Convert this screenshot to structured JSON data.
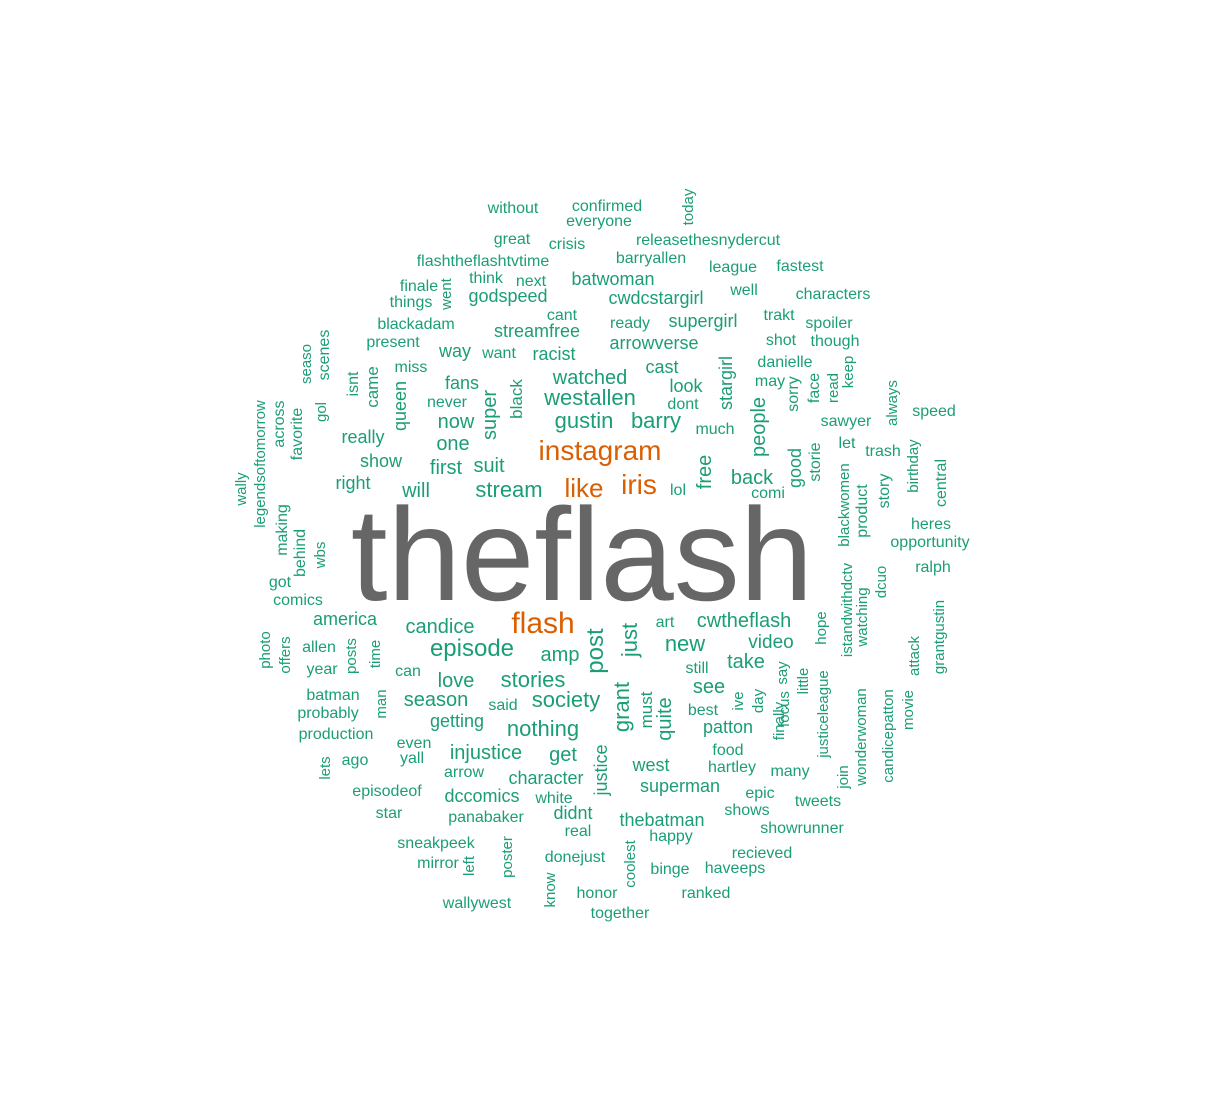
{
  "colors": {
    "tier1": "#666666",
    "tier2": "#d95f02",
    "tier3": "#1b9e77"
  },
  "words": [
    {
      "text": "theflash",
      "tier": 1
    },
    {
      "text": "instagram",
      "tier": 2
    },
    {
      "text": "flash",
      "tier": 2
    },
    {
      "text": "like",
      "tier": 2
    },
    {
      "text": "iris",
      "tier": 2
    },
    {
      "text": "without",
      "tier": 3
    },
    {
      "text": "confirmed",
      "tier": 3
    },
    {
      "text": "everyone",
      "tier": 3
    },
    {
      "text": "today",
      "tier": 3
    },
    {
      "text": "great",
      "tier": 3
    },
    {
      "text": "crisis",
      "tier": 3
    },
    {
      "text": "releasethesnydercut",
      "tier": 3
    },
    {
      "text": "flashtheflashtvtime",
      "tier": 3
    },
    {
      "text": "barryallen",
      "tier": 3
    },
    {
      "text": "league",
      "tier": 3
    },
    {
      "text": "fastest",
      "tier": 3
    },
    {
      "text": "think",
      "tier": 3
    },
    {
      "text": "next",
      "tier": 3
    },
    {
      "text": "batwoman",
      "tier": 3
    },
    {
      "text": "finale",
      "tier": 3
    },
    {
      "text": "went",
      "tier": 3
    },
    {
      "text": "well",
      "tier": 3
    },
    {
      "text": "characters",
      "tier": 3
    },
    {
      "text": "things",
      "tier": 3
    },
    {
      "text": "godspeed",
      "tier": 3
    },
    {
      "text": "cwdcstargirl",
      "tier": 3
    },
    {
      "text": "cant",
      "tier": 3
    },
    {
      "text": "trakt",
      "tier": 3
    },
    {
      "text": "blackadam",
      "tier": 3
    },
    {
      "text": "ready",
      "tier": 3
    },
    {
      "text": "supergirl",
      "tier": 3
    },
    {
      "text": "spoiler",
      "tier": 3
    },
    {
      "text": "streamfree",
      "tier": 3
    },
    {
      "text": "shot",
      "tier": 3
    },
    {
      "text": "though",
      "tier": 3
    },
    {
      "text": "present",
      "tier": 3
    },
    {
      "text": "arrowverse",
      "tier": 3
    },
    {
      "text": "seaso",
      "tier": 3
    },
    {
      "text": "scenes",
      "tier": 3
    },
    {
      "text": "way",
      "tier": 3
    },
    {
      "text": "want",
      "tier": 3
    },
    {
      "text": "racist",
      "tier": 3
    },
    {
      "text": "danielle",
      "tier": 3
    },
    {
      "text": "keep",
      "tier": 3
    },
    {
      "text": "isnt",
      "tier": 3
    },
    {
      "text": "came",
      "tier": 3
    },
    {
      "text": "miss",
      "tier": 3
    },
    {
      "text": "cast",
      "tier": 3
    },
    {
      "text": "stargirl",
      "tier": 3
    },
    {
      "text": "may",
      "tier": 3
    },
    {
      "text": "face",
      "tier": 3
    },
    {
      "text": "read",
      "tier": 3
    },
    {
      "text": "fans",
      "tier": 3
    },
    {
      "text": "watched",
      "tier": 3
    },
    {
      "text": "look",
      "tier": 3
    },
    {
      "text": "sorry",
      "tier": 3
    },
    {
      "text": "always",
      "tier": 3
    },
    {
      "text": "never",
      "tier": 3
    },
    {
      "text": "black",
      "tier": 3
    },
    {
      "text": "westallen",
      "tier": 3
    },
    {
      "text": "dont",
      "tier": 3
    },
    {
      "text": "speed",
      "tier": 3
    },
    {
      "text": "gol",
      "tier": 3
    },
    {
      "text": "queen",
      "tier": 3
    },
    {
      "text": "super",
      "tier": 3
    },
    {
      "text": "people",
      "tier": 3
    },
    {
      "text": "sawyer",
      "tier": 3
    },
    {
      "text": "legendsoftomorrow",
      "tier": 3
    },
    {
      "text": "across",
      "tier": 3
    },
    {
      "text": "favorite",
      "tier": 3
    },
    {
      "text": "now",
      "tier": 3
    },
    {
      "text": "gustin",
      "tier": 3
    },
    {
      "text": "barry",
      "tier": 3
    },
    {
      "text": "much",
      "tier": 3
    },
    {
      "text": "really",
      "tier": 3
    },
    {
      "text": "one",
      "tier": 3
    },
    {
      "text": "let",
      "tier": 3
    },
    {
      "text": "trash",
      "tier": 3
    },
    {
      "text": "birthday",
      "tier": 3
    },
    {
      "text": "show",
      "tier": 3
    },
    {
      "text": "first",
      "tier": 3
    },
    {
      "text": "suit",
      "tier": 3
    },
    {
      "text": "free",
      "tier": 3
    },
    {
      "text": "good",
      "tier": 3
    },
    {
      "text": "storie",
      "tier": 3
    },
    {
      "text": "central",
      "tier": 3
    },
    {
      "text": "wally",
      "tier": 3
    },
    {
      "text": "right",
      "tier": 3
    },
    {
      "text": "back",
      "tier": 3
    },
    {
      "text": "story",
      "tier": 3
    },
    {
      "text": "will",
      "tier": 3
    },
    {
      "text": "stream",
      "tier": 3
    },
    {
      "text": "lol",
      "tier": 3
    },
    {
      "text": "comi",
      "tier": 3
    },
    {
      "text": "blackwomen",
      "tier": 3
    },
    {
      "text": "product",
      "tier": 3
    },
    {
      "text": "heres",
      "tier": 3
    },
    {
      "text": "making",
      "tier": 3
    },
    {
      "text": "opportunity",
      "tier": 3
    },
    {
      "text": "behind",
      "tier": 3
    },
    {
      "text": "wbs",
      "tier": 3
    },
    {
      "text": "ralph",
      "tier": 3
    },
    {
      "text": "got",
      "tier": 3
    },
    {
      "text": "istandwithdctv",
      "tier": 3
    },
    {
      "text": "dcuo",
      "tier": 3
    },
    {
      "text": "comics",
      "tier": 3
    },
    {
      "text": "watching",
      "tier": 3
    },
    {
      "text": "grantgustin",
      "tier": 3
    },
    {
      "text": "america",
      "tier": 3
    },
    {
      "text": "art",
      "tier": 3
    },
    {
      "text": "cwtheflash",
      "tier": 3
    },
    {
      "text": "hope",
      "tier": 3
    },
    {
      "text": "candice",
      "tier": 3
    },
    {
      "text": "just",
      "tier": 3
    },
    {
      "text": "photo",
      "tier": 3
    },
    {
      "text": "offers",
      "tier": 3
    },
    {
      "text": "allen",
      "tier": 3
    },
    {
      "text": "posts",
      "tier": 3
    },
    {
      "text": "time",
      "tier": 3
    },
    {
      "text": "episode",
      "tier": 3
    },
    {
      "text": "post",
      "tier": 3
    },
    {
      "text": "new",
      "tier": 3
    },
    {
      "text": "video",
      "tier": 3
    },
    {
      "text": "attack",
      "tier": 3
    },
    {
      "text": "year",
      "tier": 3
    },
    {
      "text": "can",
      "tier": 3
    },
    {
      "text": "amp",
      "tier": 3
    },
    {
      "text": "take",
      "tier": 3
    },
    {
      "text": "still",
      "tier": 3
    },
    {
      "text": "say",
      "tier": 3
    },
    {
      "text": "love",
      "tier": 3
    },
    {
      "text": "stories",
      "tier": 3
    },
    {
      "text": "see",
      "tier": 3
    },
    {
      "text": "little",
      "tier": 3
    },
    {
      "text": "justiceleague",
      "tier": 3
    },
    {
      "text": "batman",
      "tier": 3
    },
    {
      "text": "man",
      "tier": 3
    },
    {
      "text": "season",
      "tier": 3
    },
    {
      "text": "society",
      "tier": 3
    },
    {
      "text": "grant",
      "tier": 3
    },
    {
      "text": "ive",
      "tier": 3
    },
    {
      "text": "day",
      "tier": 3
    },
    {
      "text": "focus",
      "tier": 3
    },
    {
      "text": "probably",
      "tier": 3
    },
    {
      "text": "said",
      "tier": 3
    },
    {
      "text": "must",
      "tier": 3
    },
    {
      "text": "best",
      "tier": 3
    },
    {
      "text": "wonderwoman",
      "tier": 3
    },
    {
      "text": "candicepatton",
      "tier": 3
    },
    {
      "text": "movie",
      "tier": 3
    },
    {
      "text": "getting",
      "tier": 3
    },
    {
      "text": "nothing",
      "tier": 3
    },
    {
      "text": "quite",
      "tier": 3
    },
    {
      "text": "patton",
      "tier": 3
    },
    {
      "text": "finally",
      "tier": 3
    },
    {
      "text": "production",
      "tier": 3
    },
    {
      "text": "even",
      "tier": 3
    },
    {
      "text": "food",
      "tier": 3
    },
    {
      "text": "injustice",
      "tier": 3
    },
    {
      "text": "get",
      "tier": 3
    },
    {
      "text": "justice",
      "tier": 3
    },
    {
      "text": "ago",
      "tier": 3
    },
    {
      "text": "yall",
      "tier": 3
    },
    {
      "text": "west",
      "tier": 3
    },
    {
      "text": "hartley",
      "tier": 3
    },
    {
      "text": "many",
      "tier": 3
    },
    {
      "text": "join",
      "tier": 3
    },
    {
      "text": "lets",
      "tier": 3
    },
    {
      "text": "arrow",
      "tier": 3
    },
    {
      "text": "character",
      "tier": 3
    },
    {
      "text": "superman",
      "tier": 3
    },
    {
      "text": "epic",
      "tier": 3
    },
    {
      "text": "tweets",
      "tier": 3
    },
    {
      "text": "episodeof",
      "tier": 3
    },
    {
      "text": "dccomics",
      "tier": 3
    },
    {
      "text": "white",
      "tier": 3
    },
    {
      "text": "shows",
      "tier": 3
    },
    {
      "text": "star",
      "tier": 3
    },
    {
      "text": "didnt",
      "tier": 3
    },
    {
      "text": "panabaker",
      "tier": 3
    },
    {
      "text": "thebatman",
      "tier": 3
    },
    {
      "text": "real",
      "tier": 3
    },
    {
      "text": "happy",
      "tier": 3
    },
    {
      "text": "showrunner",
      "tier": 3
    },
    {
      "text": "sneakpeek",
      "tier": 3
    },
    {
      "text": "coolest",
      "tier": 3
    },
    {
      "text": "recieved",
      "tier": 3
    },
    {
      "text": "donejust",
      "tier": 3
    },
    {
      "text": "mirror",
      "tier": 3
    },
    {
      "text": "left",
      "tier": 3
    },
    {
      "text": "poster",
      "tier": 3
    },
    {
      "text": "binge",
      "tier": 3
    },
    {
      "text": "haveeps",
      "tier": 3
    },
    {
      "text": "know",
      "tier": 3
    },
    {
      "text": "honor",
      "tier": 3
    },
    {
      "text": "ranked",
      "tier": 3
    },
    {
      "text": "wallywest",
      "tier": 3
    },
    {
      "text": "together",
      "tier": 3
    }
  ]
}
